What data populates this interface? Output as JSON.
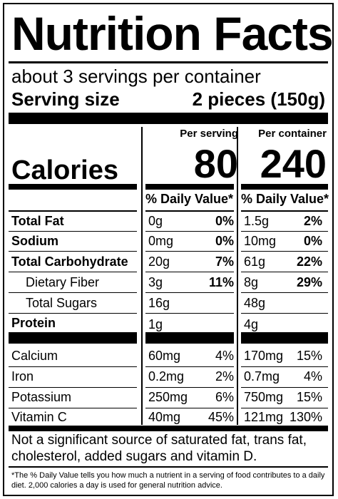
{
  "title": "Nutrition Facts",
  "servings_per_container": "about 3 servings per container",
  "serving_size_label": "Serving size",
  "serving_size_value": "2 pieces (150g)",
  "col_headers": {
    "per_serving": "Per serving",
    "per_container": "Per container"
  },
  "calories": {
    "label": "Calories",
    "per_serving": "80",
    "per_container": "240"
  },
  "daily_value_header": "% Daily Value*",
  "nutrients": [
    {
      "name": "Total Fat",
      "serving_amount": "0g",
      "serving_dv": "0%",
      "container_amount": "1.5g",
      "container_dv": "2%"
    },
    {
      "name": "Sodium",
      "serving_amount": "0mg",
      "serving_dv": "0%",
      "container_amount": "10mg",
      "container_dv": "0%"
    },
    {
      "name": "Total Carbohydrate",
      "serving_amount": "20g",
      "serving_dv": "7%",
      "container_amount": "61g",
      "container_dv": "22%"
    },
    {
      "name": "Dietary Fiber",
      "serving_amount": "3g",
      "serving_dv": "11%",
      "container_amount": "8g",
      "container_dv": "29%"
    },
    {
      "name": "Total Sugars",
      "serving_amount": "16g",
      "serving_dv": "",
      "container_amount": "48g",
      "container_dv": ""
    },
    {
      "name": "Protein",
      "serving_amount": "1g",
      "serving_dv": "",
      "container_amount": "4g",
      "container_dv": ""
    }
  ],
  "vitamins": [
    {
      "name": "Calcium",
      "serving_amount": "60mg",
      "serving_dv": "4%",
      "container_amount": "170mg",
      "container_dv": "15%"
    },
    {
      "name": "Iron",
      "serving_amount": "0.2mg",
      "serving_dv": "2%",
      "container_amount": "0.7mg",
      "container_dv": "4%"
    },
    {
      "name": "Potassium",
      "serving_amount": "250mg",
      "serving_dv": "6%",
      "container_amount": "750mg",
      "container_dv": "15%"
    },
    {
      "name": "Vitamin C",
      "serving_amount": "40mg",
      "serving_dv": "45%",
      "container_amount": "121mg",
      "container_dv": "130%"
    }
  ],
  "not_significant_note": "Not a significant source of saturated fat, trans fat, cholesterol, added sugars and vitamin D.",
  "daily_value_footnote": "*The % Daily Value tells you how much a nutrient in a serving of food contributes to a daily diet. 2,000 calories a day is used for general nutrition advice."
}
